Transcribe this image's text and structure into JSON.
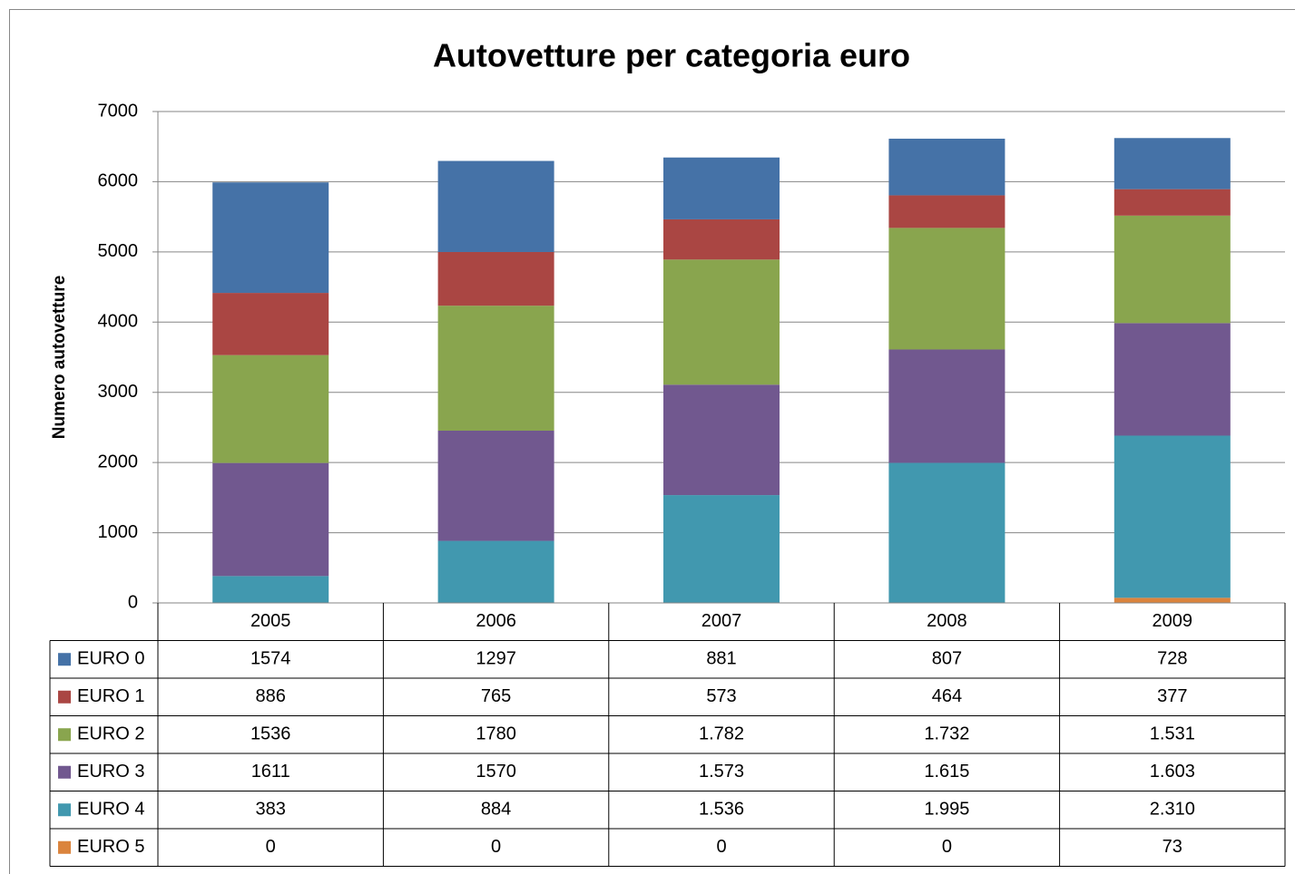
{
  "chart_data": {
    "type": "stacked_bar",
    "title": "Autovetture per categoria euro",
    "y_label": "Numero autovetture",
    "categories": [
      "2005",
      "2006",
      "2007",
      "2008",
      "2009"
    ],
    "series": [
      {
        "name": "EURO 0",
        "color": "#4572a7",
        "values": [
          1574,
          1297,
          881,
          807,
          728
        ],
        "value_labels": [
          "1574",
          "1297",
          "881",
          "807",
          "728"
        ]
      },
      {
        "name": "EURO 1",
        "color": "#aa4643",
        "values": [
          886,
          765,
          573,
          464,
          377
        ],
        "value_labels": [
          "886",
          "765",
          "573",
          "464",
          "377"
        ]
      },
      {
        "name": "EURO 2",
        "color": "#89a54e",
        "values": [
          1536,
          1780,
          1782,
          1732,
          1531
        ],
        "value_labels": [
          "1536",
          "1780",
          "1.782",
          "1.732",
          "1.531"
        ]
      },
      {
        "name": "EURO 3",
        "color": "#71588f",
        "values": [
          1611,
          1570,
          1573,
          1615,
          1603
        ],
        "value_labels": [
          "1611",
          "1570",
          "1.573",
          "1.615",
          "1.603"
        ]
      },
      {
        "name": "EURO 4",
        "color": "#4198af",
        "values": [
          383,
          884,
          1536,
          1995,
          2310
        ],
        "value_labels": [
          "383",
          "884",
          "1.536",
          "1.995",
          "2.310"
        ]
      },
      {
        "name": "EURO 5",
        "color": "#db843d",
        "values": [
          0,
          0,
          0,
          0,
          73
        ],
        "value_labels": [
          "0",
          "0",
          "0",
          "0",
          "73"
        ]
      }
    ],
    "ylim": [
      0,
      7000
    ],
    "yticks": [
      0,
      1000,
      2000,
      3000,
      4000,
      5000,
      6000,
      7000
    ],
    "grid": true
  }
}
